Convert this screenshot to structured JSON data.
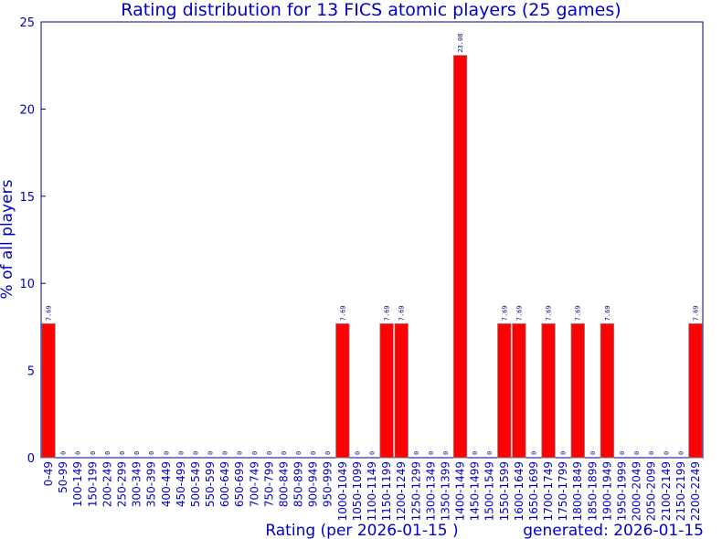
{
  "chart_data": {
    "type": "bar",
    "title": "Rating distribution for 13 FICS atomic players (25 games)",
    "xlabel": "Rating (per 2026-01-15 )",
    "ylabel": "% of all players",
    "footer": "generated: 2026-01-15",
    "ylim": [
      0,
      25
    ],
    "yticks": [
      "0",
      "5",
      "10",
      "15",
      "20",
      "25"
    ],
    "bar_color": "#ff0000",
    "text_color": "#0000c8",
    "categories": [
      "0-49",
      "50-99",
      "100-149",
      "150-199",
      "200-249",
      "250-299",
      "300-349",
      "350-399",
      "400-449",
      "450-499",
      "500-549",
      "550-599",
      "600-649",
      "650-699",
      "700-749",
      "750-799",
      "800-849",
      "850-899",
      "900-949",
      "950-999",
      "1000-1049",
      "1050-1099",
      "1100-1149",
      "1150-1199",
      "1200-1249",
      "1250-1299",
      "1300-1349",
      "1350-1399",
      "1400-1449",
      "1450-1499",
      "1500-1549",
      "1550-1599",
      "1600-1649",
      "1650-1699",
      "1700-1749",
      "1750-1799",
      "1800-1849",
      "1850-1899",
      "1900-1949",
      "1950-1999",
      "2000-2049",
      "2050-2099",
      "2100-2149",
      "2150-2199",
      "2200-2249"
    ],
    "values": [
      7.69,
      0,
      0,
      0,
      0,
      0,
      0,
      0,
      0,
      0,
      0,
      0,
      0,
      0,
      0,
      0,
      0,
      0,
      0,
      0,
      7.69,
      0,
      0,
      7.69,
      7.69,
      0,
      0,
      0,
      23.08,
      0,
      0,
      7.69,
      7.69,
      0,
      7.69,
      0,
      7.69,
      0,
      7.69,
      0,
      0,
      0,
      0,
      0,
      7.69
    ],
    "labels": [
      "7.69",
      "0",
      "0",
      "0",
      "0",
      "0",
      "0",
      "0",
      "0",
      "0",
      "0",
      "0",
      "0",
      "0",
      "0",
      "0",
      "0",
      "0",
      "0",
      "0",
      "7.69",
      "0",
      "0",
      "7.69",
      "7.69",
      "0",
      "0",
      "0",
      "23.08",
      "0",
      "0",
      "7.69",
      "7.69",
      "0",
      "7.69",
      "0",
      "7.69",
      "0",
      "7.69",
      "0",
      "0",
      "0",
      "0",
      "0",
      "7.69"
    ]
  }
}
